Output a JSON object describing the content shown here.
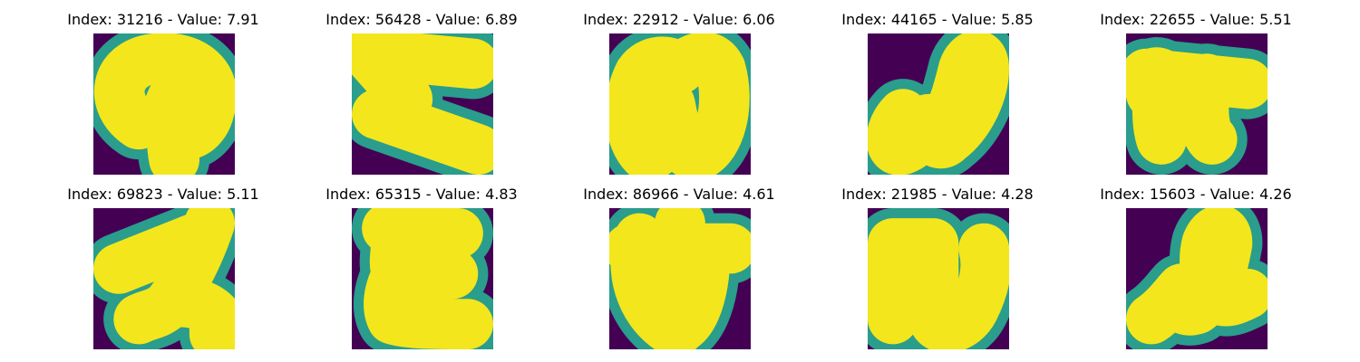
{
  "colors": {
    "background": "#440154",
    "stroke": "#f3e61d",
    "stroke_edge": "#2a9d8c"
  },
  "panels": [
    {
      "title": "Index: 31216 - Value: 7.91"
    },
    {
      "title": "Index: 56428 - Value: 6.89"
    },
    {
      "title": "Index: 22912 - Value: 6.06"
    },
    {
      "title": "Index: 44165 - Value: 5.85"
    },
    {
      "title": "Index: 22655 - Value: 5.51"
    },
    {
      "title": "Index: 69823 - Value: 5.11"
    },
    {
      "title": "Index: 65315 - Value: 4.83"
    },
    {
      "title": "Index: 86966 - Value: 4.61"
    },
    {
      "title": "Index: 21985 - Value: 4.28"
    },
    {
      "title": "Index: 15603 - Value: 4.26"
    }
  ]
}
